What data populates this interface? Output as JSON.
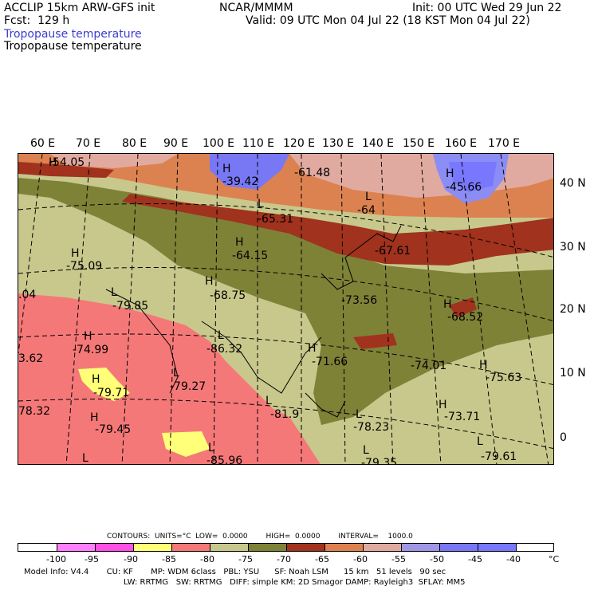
{
  "header": {
    "model": "ACCLIP 15km ARW-GFS init",
    "center": "NCAR/MMMM",
    "init": "Init: 00 UTC Wed 29 Jun 22",
    "fcst": "Fcst:  129 h",
    "valid": "Valid: 09 UTC Mon 04 Jul 22 (18 KST Mon 04 Jul 22)",
    "field1": "Tropopause temperature",
    "field2": "Tropopause temperature"
  },
  "longitudes": [
    "60 E",
    "70 E",
    "80 E",
    "90 E",
    "100 E",
    "110 E",
    "120 E",
    "130 E",
    "140 E",
    "150 E",
    "160 E",
    "170 E"
  ],
  "latitudes": [
    "40 N",
    "30 N",
    "20 N",
    "10 N",
    "0"
  ],
  "map_labels": [
    {
      "id": "h1",
      "text": "H"
    },
    {
      "id": "v1",
      "text": "-54.05"
    },
    {
      "id": "h2",
      "text": "H"
    },
    {
      "id": "v2",
      "text": "-39.42"
    },
    {
      "id": "v3",
      "text": "-61.48"
    },
    {
      "id": "h3",
      "text": "H"
    },
    {
      "id": "v4",
      "text": "-45.66"
    },
    {
      "id": "l1",
      "text": "L"
    },
    {
      "id": "v5",
      "text": "-64"
    },
    {
      "id": "l2",
      "text": "L"
    },
    {
      "id": "v6",
      "text": "-65.31"
    },
    {
      "id": "h4",
      "text": "H"
    },
    {
      "id": "v7",
      "text": "-64.15"
    },
    {
      "id": "v8",
      "text": "-67.61"
    },
    {
      "id": "h5",
      "text": "H"
    },
    {
      "id": "v9",
      "text": "-75.09"
    },
    {
      "id": "h6",
      "text": "H"
    },
    {
      "id": "v10",
      "text": "-68.75"
    },
    {
      "id": "l3",
      "text": "L"
    },
    {
      "id": "v11",
      "text": "-79.85"
    },
    {
      "id": "v12",
      "text": "-73.56"
    },
    {
      "id": "h7",
      "text": "H"
    },
    {
      "id": "v13",
      "text": "-68.52"
    },
    {
      "id": "v14",
      "text": ".04"
    },
    {
      "id": "h8",
      "text": "H"
    },
    {
      "id": "v15",
      "text": "-74.99"
    },
    {
      "id": "l4",
      "text": "L"
    },
    {
      "id": "v16",
      "text": "-86.32"
    },
    {
      "id": "h9",
      "text": "H"
    },
    {
      "id": "v17",
      "text": "-71.66"
    },
    {
      "id": "v18",
      "text": "-74.01"
    },
    {
      "id": "h10",
      "text": "H"
    },
    {
      "id": "v19",
      "text": "-75.63"
    },
    {
      "id": "v20",
      "text": "3.62"
    },
    {
      "id": "h11",
      "text": "H"
    },
    {
      "id": "v21",
      "text": "-79.71"
    },
    {
      "id": "l5",
      "text": "L"
    },
    {
      "id": "v22",
      "text": "-79.27"
    },
    {
      "id": "l6",
      "text": "L"
    },
    {
      "id": "v23",
      "text": "-81.9"
    },
    {
      "id": "h12",
      "text": "H"
    },
    {
      "id": "v24",
      "text": "-73.71"
    },
    {
      "id": "v25",
      "text": "78.32"
    },
    {
      "id": "h13",
      "text": "H"
    },
    {
      "id": "v26",
      "text": "-79.45"
    },
    {
      "id": "l7",
      "text": "L"
    },
    {
      "id": "v27",
      "text": "-78.23"
    },
    {
      "id": "l8",
      "text": "L"
    },
    {
      "id": "v28",
      "text": "-79.61"
    },
    {
      "id": "l9",
      "text": "L"
    },
    {
      "id": "l10",
      "text": "L"
    },
    {
      "id": "v29",
      "text": "-85.96"
    },
    {
      "id": "l11",
      "text": "L"
    },
    {
      "id": "v30",
      "text": "-79.35"
    }
  ],
  "contours": {
    "label": "CONTOURS:  UNITS=°C  LOW=  0.0000        HIGH=  0.0000        INTERVAL=    1000.0"
  },
  "colorbar": {
    "colors": [
      "#ffffff",
      "#ff80ff",
      "#ff50e6",
      "#ffff78",
      "#f57878",
      "#c8c88c",
      "#7d8237",
      "#a0321e",
      "#dc8250",
      "#e1aaa0",
      "#a096e6",
      "#7878f5",
      "#7878ff"
    ],
    "ticks": [
      "-100",
      "-95",
      "-90",
      "-85",
      "-80",
      "-75",
      "-70",
      "-65",
      "-60",
      "-55",
      "-50",
      "-45",
      "-40",
      "°C"
    ]
  },
  "footer": {
    "line1": "Model Info: V4.4       CU: KF       MP: WDM 6class   PBL: YSU      SF: Noah LSM      15 km   51 levels   90 sec",
    "line2": "LW: RRTMG   SW: RRTMG   DIFF: simple KM: 2D Smagor DAMP: Rayleigh3  SFLAY: MM5"
  }
}
